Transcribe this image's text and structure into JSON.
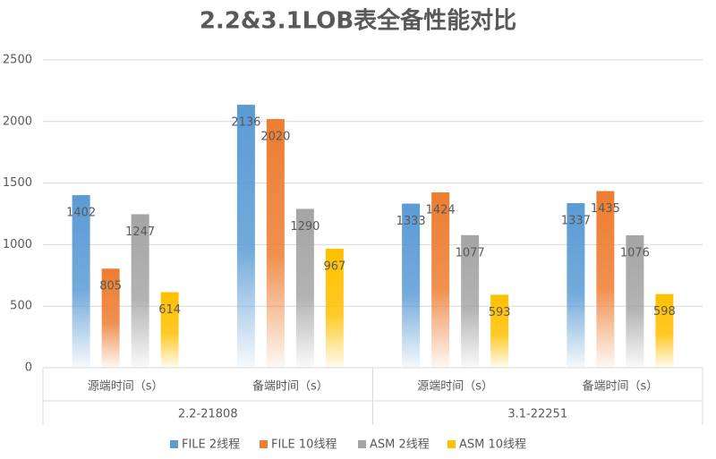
{
  "chart_data": {
    "type": "bar",
    "title": "2.2&3.1LOB表全备性能对比",
    "categories": [
      "源端时间（s）",
      "备端时间（s）",
      "源端时间（s）",
      "备端时间（s）"
    ],
    "category_groups": [
      "2.2-21808",
      "3.1-22251"
    ],
    "series": [
      {
        "name": "FILE 2线程",
        "color": "#5b9bd5",
        "values": [
          1402,
          2136,
          1333,
          1337
        ]
      },
      {
        "name": "FILE 10线程",
        "color": "#ed7d31",
        "values": [
          805,
          2020,
          1424,
          1435
        ]
      },
      {
        "name": "ASM 2线程",
        "color": "#a5a5a5",
        "values": [
          1247,
          1290,
          1077,
          1076
        ]
      },
      {
        "name": "ASM 10线程",
        "color": "#ffc000",
        "values": [
          614,
          967,
          593,
          598
        ]
      }
    ],
    "ylim": [
      0,
      2500
    ],
    "yticks": [
      0,
      500,
      1000,
      1500,
      2000,
      2500
    ],
    "grid": true
  }
}
